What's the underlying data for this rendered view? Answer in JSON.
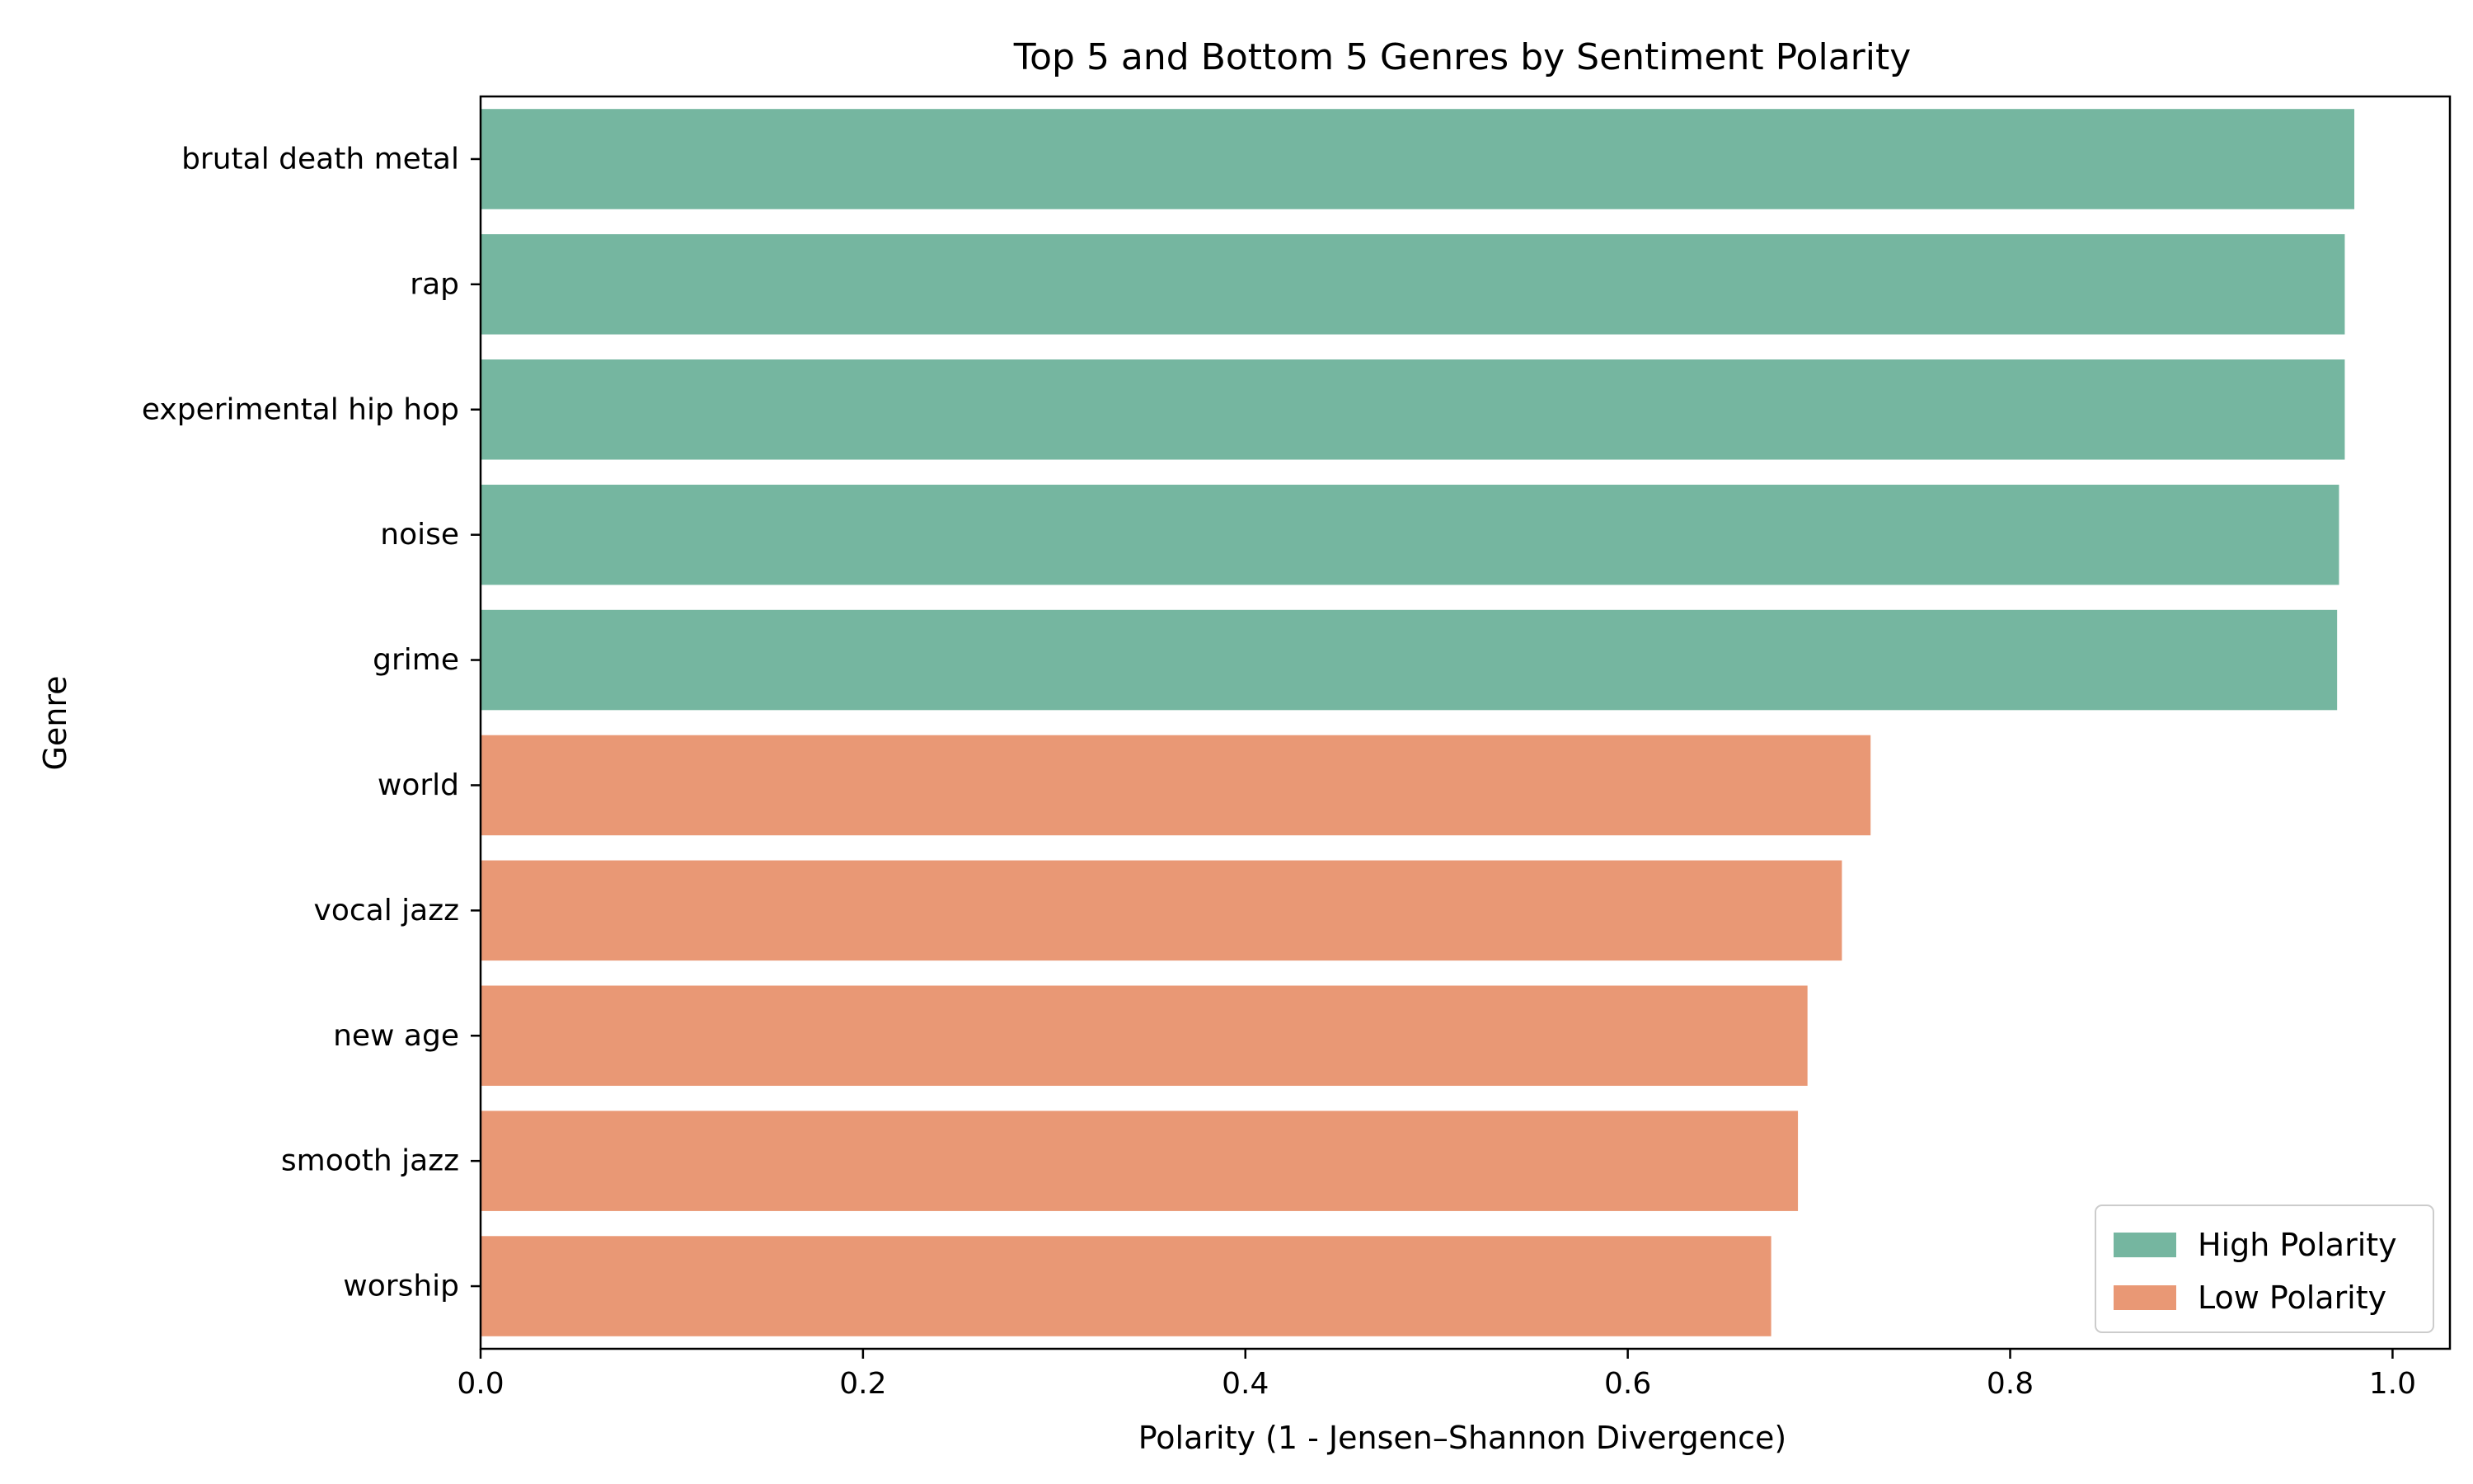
{
  "chart_data": {
    "type": "bar",
    "orientation": "horizontal",
    "title": "Top 5 and Bottom 5 Genres by Sentiment Polarity",
    "xlabel": "Polarity (1 - Jensen–Shannon Divergence)",
    "ylabel": "Genre",
    "xlim": [
      0.0,
      1.03
    ],
    "xticks": [
      "0.0",
      "0.2",
      "0.4",
      "0.6",
      "0.8",
      "1.0"
    ],
    "categories": [
      "brutal death metal",
      "rap",
      "experimental hip hop",
      "noise",
      "grime",
      "world",
      "vocal jazz",
      "new age",
      "smooth jazz",
      "worship"
    ],
    "values": [
      0.98,
      0.975,
      0.975,
      0.972,
      0.971,
      0.727,
      0.712,
      0.694,
      0.689,
      0.675
    ],
    "groups": [
      "High Polarity",
      "High Polarity",
      "High Polarity",
      "High Polarity",
      "High Polarity",
      "Low Polarity",
      "Low Polarity",
      "Low Polarity",
      "Low Polarity",
      "Low Polarity"
    ],
    "legend": {
      "placement": "bottom-right",
      "entries": [
        {
          "label": "High Polarity",
          "color": "#75b6a0"
        },
        {
          "label": "Low Polarity",
          "color": "#e99875"
        }
      ]
    },
    "grid": false
  }
}
